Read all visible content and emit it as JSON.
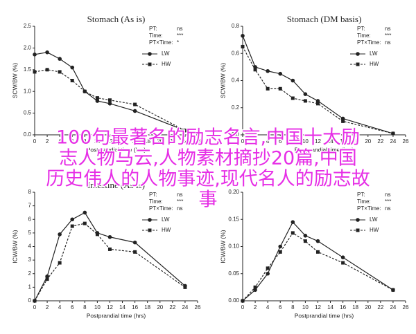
{
  "chart_data": [
    {
      "type": "line",
      "title": "Stomach (As is)",
      "x_label": "Postprandial time (hrs)",
      "y_label": "SCW/BW (%)",
      "x": [
        0,
        2,
        4,
        6,
        8,
        10,
        12,
        16,
        24
      ],
      "series": [
        {
          "name": "LW",
          "color": "#222222",
          "values": [
            1.85,
            1.9,
            1.75,
            1.55,
            1.0,
            0.78,
            0.72,
            0.55,
            0.1
          ]
        },
        {
          "name": "HW",
          "color": "#222222",
          "values": [
            1.45,
            1.5,
            1.45,
            1.25,
            1.0,
            0.85,
            0.8,
            0.7,
            0.1
          ]
        }
      ],
      "stats": [
        {
          "label": "PT:",
          "value": "ns"
        },
        {
          "label": "Time:",
          "value": "***"
        },
        {
          "label": "PT×Time:",
          "value": "*"
        }
      ],
      "xlim": [
        0,
        26
      ],
      "xticks": [
        0,
        2,
        4,
        6,
        8,
        10,
        12,
        14,
        16,
        18,
        20,
        22,
        24,
        26
      ],
      "ylim": [
        0,
        2.5
      ],
      "yticks": [
        {
          "value": 0,
          "label": "0.0"
        },
        0.5,
        {
          "value": 1,
          "label": "1.0"
        },
        1.5,
        {
          "value": 2,
          "label": "2.0"
        },
        2.5
      ]
    },
    {
      "type": "line",
      "title": "Stomach (DM basis)",
      "x_label": "Postprandial time (hrs)",
      "y_label": "SCW/BW (%)",
      "x": [
        0,
        2,
        4,
        6,
        8,
        10,
        12,
        16,
        24
      ],
      "series": [
        {
          "name": "LW",
          "color": "#222222",
          "values": [
            0.73,
            0.5,
            0.47,
            0.45,
            0.4,
            0.3,
            0.25,
            0.12,
            0.01
          ]
        },
        {
          "name": "HW",
          "color": "#222222",
          "values": [
            0.65,
            0.48,
            0.34,
            0.34,
            0.27,
            0.25,
            0.23,
            0.1,
            0.01
          ]
        }
      ],
      "stats": [
        {
          "label": "PT:",
          "value": "ns"
        },
        {
          "label": "Time:",
          "value": "***"
        },
        {
          "label": "PT×Time:",
          "value": "ns"
        }
      ],
      "xlim": [
        0,
        26
      ],
      "xticks": [
        0,
        2,
        4,
        6,
        8,
        10,
        12,
        14,
        16,
        18,
        20,
        22,
        24,
        26
      ],
      "ylim": [
        0,
        0.8
      ],
      "yticks": [
        {
          "value": 0,
          "label": "0.0"
        },
        0.2,
        0.4,
        0.6,
        0.8
      ]
    },
    {
      "type": "line",
      "title": "Intestine (As is)",
      "x_label": "Postprandial time (hrs)",
      "y_label": "ICW/BW (%)",
      "x": [
        0,
        2,
        4,
        6,
        8,
        10,
        12,
        16,
        24
      ],
      "series": [
        {
          "name": "LW",
          "color": "#222222",
          "values": [
            0,
            1.8,
            4.9,
            6.0,
            6.5,
            5.0,
            4.7,
            4.3,
            1.1
          ]
        },
        {
          "name": "HW",
          "color": "#222222",
          "values": [
            0,
            1.6,
            2.8,
            5.5,
            5.7,
            4.9,
            3.8,
            3.6,
            1.0
          ]
        }
      ],
      "stats": [
        {
          "label": "PT:",
          "value": "ns"
        },
        {
          "label": "Time:",
          "value": "***"
        },
        {
          "label": "PT×Time:",
          "value": "ns"
        }
      ],
      "xlim": [
        0,
        26
      ],
      "xticks": [
        0,
        2,
        4,
        6,
        8,
        10,
        12,
        14,
        16,
        18,
        20,
        22,
        24,
        26
      ],
      "ylim": [
        0,
        8
      ],
      "yticks": [
        0,
        1,
        2,
        3,
        4,
        5,
        6,
        7,
        8
      ]
    },
    {
      "type": "line",
      "x_label": "Postprandial time (hrs)",
      "y_label": "ICW/BW (%)",
      "x": [
        0,
        2,
        4,
        6,
        8,
        10,
        12,
        16,
        24
      ],
      "series": [
        {
          "name": "LW",
          "color": "#222222",
          "values": [
            0,
            0.02,
            0.05,
            0.1,
            0.145,
            0.12,
            0.11,
            0.08,
            0.02
          ]
        },
        {
          "name": "HW",
          "color": "#222222",
          "values": [
            0,
            0.025,
            0.06,
            0.09,
            0.125,
            0.11,
            0.09,
            0.07,
            0.02
          ]
        }
      ],
      "stats": [
        {
          "label": "PT:",
          "value": "ns"
        },
        {
          "label": "Time:",
          "value": "***"
        },
        {
          "label": "PT×Time:",
          "value": "ns"
        }
      ],
      "xlim": [
        0,
        26
      ],
      "xticks": [
        0,
        2,
        4,
        6,
        8,
        10,
        12,
        14,
        16,
        18,
        20,
        22,
        24,
        26
      ],
      "ylim": [
        0,
        0.2
      ],
      "yticks": [
        {
          "value": 0,
          "label": "0.00"
        },
        0.05,
        {
          "value": 0.1,
          "label": "0.10"
        },
        0.15,
        {
          "value": 0.2,
          "label": "0.20"
        }
      ]
    }
  ],
  "overlay": {
    "lines": [
      "100句最著名的励志名言,中国十大励",
      "志人物马云,人物素材摘抄20篇,中国",
      "历史伟人的人物事迹,现代名人的励志故",
      "事"
    ]
  }
}
